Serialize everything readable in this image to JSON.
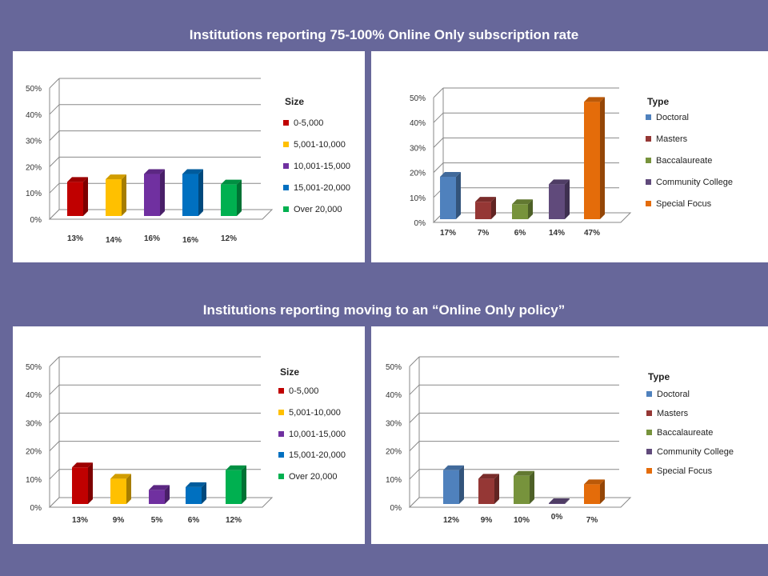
{
  "sections": [
    {
      "title": "Institutions  reporting 75-100% Online Only subscription rate"
    },
    {
      "title": "Institutions  reporting moving to an “Online Only policy”"
    }
  ],
  "colors": {
    "background": "#67679a",
    "size": [
      "#c00000",
      "#ffc000",
      "#7030a0",
      "#0070c0",
      "#00b050"
    ],
    "type": [
      "#4f81bd",
      "#953735",
      "#77933c",
      "#604a7b",
      "#e46c0a"
    ]
  },
  "chart_data": [
    {
      "type": "bar",
      "categories": [
        "0-5,000",
        "5,001-10,000",
        "10,001-15,000",
        "15,001-20,000",
        "Over 20,000"
      ],
      "values": [
        13,
        14,
        16,
        16,
        12
      ],
      "data_labels": [
        "13%",
        "14%",
        "16%",
        "16%",
        "12%"
      ],
      "ylim": [
        0,
        50
      ],
      "yticks": [
        "0%",
        "10%",
        "20%",
        "30%",
        "40%",
        "50%"
      ],
      "legend_title": "Size",
      "legend_position": "right",
      "grid": true
    },
    {
      "type": "bar",
      "categories": [
        "Doctoral",
        "Masters",
        "Baccalaureate",
        "Community College",
        "Special Focus"
      ],
      "values": [
        17,
        7,
        6,
        14,
        47
      ],
      "data_labels": [
        "17%",
        "7%",
        "6%",
        "14%",
        "47%"
      ],
      "ylim": [
        0,
        50
      ],
      "yticks": [
        "0%",
        "10%",
        "20%",
        "30%",
        "40%",
        "50%"
      ],
      "legend_title": "Type",
      "legend_position": "right",
      "grid": true
    },
    {
      "type": "bar",
      "categories": [
        "0-5,000",
        "5,001-10,000",
        "10,001-15,000",
        "15,001-20,000",
        "Over 20,000"
      ],
      "values": [
        13,
        9,
        5,
        6,
        12
      ],
      "data_labels": [
        "13%",
        "9%",
        "5%",
        "6%",
        "12%"
      ],
      "ylim": [
        0,
        50
      ],
      "yticks": [
        "0%",
        "10%",
        "20%",
        "30%",
        "40%",
        "50%"
      ],
      "legend_title": "Size",
      "legend_position": "right",
      "grid": true
    },
    {
      "type": "bar",
      "categories": [
        "Doctoral",
        "Masters",
        "Baccalaureate",
        "Community College",
        "Special Focus"
      ],
      "values": [
        12,
        9,
        10,
        0,
        7
      ],
      "data_labels": [
        "12%",
        "9%",
        "10%",
        "0%",
        "7%"
      ],
      "ylim": [
        0,
        50
      ],
      "yticks": [
        "0%",
        "10%",
        "20%",
        "30%",
        "40%",
        "50%"
      ],
      "legend_title": "Type",
      "legend_position": "right",
      "grid": true
    }
  ]
}
